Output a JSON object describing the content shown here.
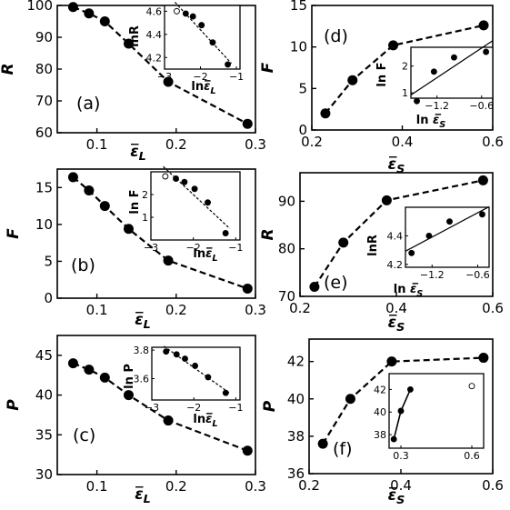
{
  "chart_data": [
    {
      "id": "a",
      "type": "line",
      "panel_label": "(a)",
      "ylabel": "R",
      "xlabel": "ε̄L",
      "xlim": [
        0.05,
        0.3
      ],
      "ylim": [
        60,
        100
      ],
      "xticks": [
        0.1,
        0.2,
        0.3
      ],
      "xtick_labels": [
        "0.1",
        "0.2",
        "0.3"
      ],
      "yticks": [
        60,
        70,
        80,
        90,
        100
      ],
      "ytick_labels": [
        "60",
        "70",
        "80",
        "90",
        "100"
      ],
      "series": [
        {
          "x": [
            0.07,
            0.09,
            0.11,
            0.14,
            0.19,
            0.29
          ],
          "y": [
            99.5,
            97.5,
            95,
            88,
            76,
            62.8
          ]
        }
      ],
      "inset": {
        "xlabel": "lnε̄L",
        "ylabel": "lnR",
        "xlim": [
          -3,
          -0.9
        ],
        "ylim": [
          4.1,
          4.65
        ],
        "xticks": [
          -3,
          -2,
          -1
        ],
        "xtick_labels": [
          "−3",
          "−2",
          "−1"
        ],
        "yticks": [
          4.2,
          4.4,
          4.6
        ],
        "ytick_labels": [
          "4.2",
          "4.4",
          "4.6"
        ],
        "x": [
          -2.66,
          -2.41,
          -2.21,
          -1.97,
          -1.66,
          -1.24
        ],
        "y": [
          4.6,
          4.58,
          4.555,
          4.48,
          4.33,
          4.14
        ],
        "hollow": [
          0
        ],
        "fit": "dashed"
      }
    },
    {
      "id": "b",
      "type": "line",
      "panel_label": "(b)",
      "ylabel": "F",
      "xlabel": "ε̄L",
      "xlim": [
        0.05,
        0.3
      ],
      "ylim": [
        0,
        17.5
      ],
      "xticks": [
        0.1,
        0.2,
        0.3
      ],
      "xtick_labels": [
        "0.1",
        "0.2",
        "0.3"
      ],
      "yticks": [
        0,
        5,
        10,
        15
      ],
      "ytick_labels": [
        "0",
        "5",
        "10",
        "15"
      ],
      "series": [
        {
          "x": [
            0.07,
            0.09,
            0.11,
            0.14,
            0.19,
            0.29
          ],
          "y": [
            16.4,
            14.6,
            12.5,
            9.4,
            5.1,
            1.3
          ]
        }
      ],
      "inset": {
        "xlabel": "lnε̄L",
        "ylabel": "ln F",
        "xlim": [
          -3,
          -0.9
        ],
        "ylim": [
          0,
          3
        ],
        "xticks": [
          -3,
          -2,
          -1
        ],
        "xtick_labels": [
          "−3",
          "−2",
          "−1"
        ],
        "yticks": [
          1,
          2
        ],
        "ytick_labels": [
          "1",
          "2"
        ],
        "x": [
          -2.66,
          -2.41,
          -2.21,
          -1.97,
          -1.66,
          -1.24
        ],
        "y": [
          2.8,
          2.7,
          2.55,
          2.25,
          1.65,
          0.3
        ],
        "hollow": [
          0
        ],
        "fit": "dashed"
      }
    },
    {
      "id": "c",
      "type": "line",
      "panel_label": "(c)",
      "ylabel": "P",
      "xlabel": "ε̄L",
      "xlim": [
        0.05,
        0.3
      ],
      "ylim": [
        30,
        47.5
      ],
      "xticks": [
        0.1,
        0.2,
        0.3
      ],
      "xtick_labels": [
        "0.1",
        "0.2",
        "0.3"
      ],
      "yticks": [
        30,
        35,
        40,
        45
      ],
      "ytick_labels": [
        "30",
        "35",
        "40",
        "45"
      ],
      "series": [
        {
          "x": [
            0.07,
            0.09,
            0.11,
            0.14,
            0.19,
            0.29
          ],
          "y": [
            44,
            43.2,
            42.2,
            40,
            36.8,
            33
          ]
        }
      ],
      "inset": {
        "xlabel": "lnε̄L",
        "ylabel": "ln P",
        "xlim": [
          -3,
          -0.9
        ],
        "ylim": [
          3.45,
          3.82
        ],
        "xticks": [
          -3,
          -2,
          -1
        ],
        "xtick_labels": [
          "−3",
          "−2",
          "−1"
        ],
        "yticks": [
          3.6,
          3.8
        ],
        "ytick_labels": [
          "3.6",
          "3.8"
        ],
        "x": [
          -2.66,
          -2.41,
          -2.21,
          -1.97,
          -1.66,
          -1.24
        ],
        "y": [
          3.79,
          3.77,
          3.74,
          3.69,
          3.61,
          3.5
        ],
        "hollow": [],
        "fit": "dashed"
      }
    },
    {
      "id": "d",
      "type": "line",
      "panel_label": "(d)",
      "ylabel": "F",
      "xlabel": "ε̄S",
      "xlim": [
        0.2,
        0.6
      ],
      "ylim": [
        0,
        15
      ],
      "xticks": [
        0.2,
        0.4,
        0.6
      ],
      "xtick_labels": [
        "0.2",
        "0.4",
        "0.6"
      ],
      "yticks": [
        0,
        5,
        10,
        15
      ],
      "ytick_labels": [
        "0",
        "5",
        "10",
        "15"
      ],
      "series": [
        {
          "x": [
            0.23,
            0.29,
            0.38,
            0.58
          ],
          "y": [
            2,
            6,
            10.2,
            12.6
          ]
        }
      ],
      "inset": {
        "xlabel": "ln ε̄S",
        "ylabel": "ln F",
        "xlim": [
          -1.55,
          -0.45
        ],
        "ylim": [
          0.8,
          2.7
        ],
        "xticks": [
          -1.2,
          -0.6
        ],
        "xtick_labels": [
          "−1.2",
          "−0.6"
        ],
        "yticks": [
          1,
          2
        ],
        "ytick_labels": [
          "1",
          "2"
        ],
        "x": [
          -1.47,
          -1.24,
          -0.97,
          -0.54
        ],
        "y": [
          0.69,
          1.79,
          2.32,
          2.53
        ],
        "hollow": [],
        "fit": "solid"
      }
    },
    {
      "id": "e",
      "type": "line",
      "panel_label": "(e)",
      "ylabel": "R",
      "xlabel": "ε̄S",
      "xlim": [
        0.2,
        0.6
      ],
      "ylim": [
        70,
        96
      ],
      "xticks": [
        0.2,
        0.4,
        0.6
      ],
      "xtick_labels": [
        "0.2",
        "0.4",
        "0.6"
      ],
      "yticks": [
        70,
        80,
        90
      ],
      "ytick_labels": [
        "70",
        "80",
        "90"
      ],
      "series": [
        {
          "x": [
            0.23,
            0.29,
            0.38,
            0.58
          ],
          "y": [
            72,
            81.3,
            90.2,
            94.4
          ]
        }
      ],
      "inset": {
        "xlabel": "ln ε̄S",
        "ylabel": "lnR",
        "xlim": [
          -1.55,
          -0.45
        ],
        "ylim": [
          4.18,
          4.6
        ],
        "xticks": [
          -1.2,
          -0.6
        ],
        "xtick_labels": [
          "−1.2",
          "−0.6"
        ],
        "yticks": [
          4.2,
          4.4
        ],
        "ytick_labels": [
          "4.2",
          "4.4"
        ],
        "x": [
          -1.47,
          -1.24,
          -0.97,
          -0.54
        ],
        "y": [
          4.28,
          4.4,
          4.5,
          4.55
        ],
        "hollow": [],
        "fit": "solid"
      }
    },
    {
      "id": "f",
      "type": "line",
      "panel_label": "(f)",
      "ylabel": "P",
      "xlabel": "ε̄S",
      "xlim": [
        0.2,
        0.6
      ],
      "ylim": [
        36,
        43.2
      ],
      "xticks": [
        0.2,
        0.4,
        0.6
      ],
      "xtick_labels": [
        "0.2",
        "0.4",
        "0.6"
      ],
      "yticks": [
        36,
        38,
        40,
        42
      ],
      "ytick_labels": [
        "36",
        "38",
        "40",
        "42"
      ],
      "series": [
        {
          "x": [
            0.23,
            0.29,
            0.38,
            0.58
          ],
          "y": [
            37.6,
            40,
            42,
            42.2
          ]
        }
      ],
      "inset": {
        "xlabel": "",
        "ylabel": "",
        "xlim": [
          0.25,
          0.65
        ],
        "ylim": [
          36.8,
          43.4
        ],
        "xticks": [
          0.3,
          0.6
        ],
        "xtick_labels": [
          "0.3",
          "0.6"
        ],
        "yticks": [
          38,
          40,
          42
        ],
        "ytick_labels": [
          "38",
          "40",
          "42"
        ],
        "x": [
          0.27,
          0.3,
          0.34,
          0.6
        ],
        "y": [
          37.6,
          40.1,
          42,
          42.3
        ],
        "hollow": [
          3
        ],
        "fit": "connect3"
      }
    }
  ]
}
